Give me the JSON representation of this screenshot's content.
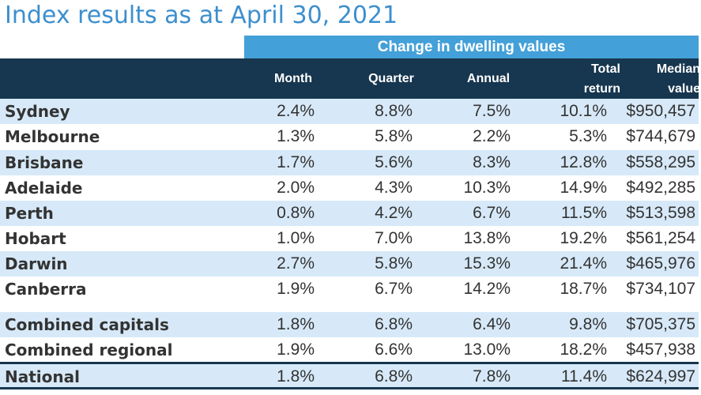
{
  "title": "Index results as at April 30, 2021",
  "group_header": "Change in dwelling values",
  "columns": {
    "month": "Month",
    "quarter": "Quarter",
    "annual": "Annual",
    "total_return_line1": "Total",
    "total_return_line2": "return",
    "median_line1": "Median",
    "median_line2": "value"
  },
  "rows": [
    {
      "region": "Sydney",
      "month": "2.4%",
      "quarter": "8.8%",
      "annual": "7.5%",
      "total_return": "10.1%",
      "median_value": "$950,457"
    },
    {
      "region": "Melbourne",
      "month": "1.3%",
      "quarter": "5.8%",
      "annual": "2.2%",
      "total_return": "5.3%",
      "median_value": "$744,679"
    },
    {
      "region": "Brisbane",
      "month": "1.7%",
      "quarter": "5.6%",
      "annual": "8.3%",
      "total_return": "12.8%",
      "median_value": "$558,295"
    },
    {
      "region": "Adelaide",
      "month": "2.0%",
      "quarter": "4.3%",
      "annual": "10.3%",
      "total_return": "14.9%",
      "median_value": "$492,285"
    },
    {
      "region": "Perth",
      "month": "0.8%",
      "quarter": "4.2%",
      "annual": "6.7%",
      "total_return": "11.5%",
      "median_value": "$513,598"
    },
    {
      "region": "Hobart",
      "month": "1.0%",
      "quarter": "7.0%",
      "annual": "13.8%",
      "total_return": "19.2%",
      "median_value": "$561,254"
    },
    {
      "region": "Darwin",
      "month": "2.7%",
      "quarter": "5.8%",
      "annual": "15.3%",
      "total_return": "21.4%",
      "median_value": "$465,976"
    },
    {
      "region": "Canberra",
      "month": "1.9%",
      "quarter": "6.7%",
      "annual": "14.2%",
      "total_return": "18.7%",
      "median_value": "$734,107"
    },
    {
      "region": "Combined capitals",
      "month": "1.8%",
      "quarter": "6.8%",
      "annual": "6.4%",
      "total_return": "9.8%",
      "median_value": "$705,375"
    },
    {
      "region": "Combined regional",
      "month": "1.9%",
      "quarter": "6.6%",
      "annual": "13.0%",
      "total_return": "18.2%",
      "median_value": "$457,938"
    },
    {
      "region": "National",
      "month": "1.8%",
      "quarter": "6.8%",
      "annual": "7.8%",
      "total_return": "11.4%",
      "median_value": "$624,997"
    }
  ],
  "colors": {
    "title": "#3c8fce",
    "group_band": "#43a0d8",
    "header_band": "#17364f",
    "alt_row": "#d7e9f8"
  }
}
